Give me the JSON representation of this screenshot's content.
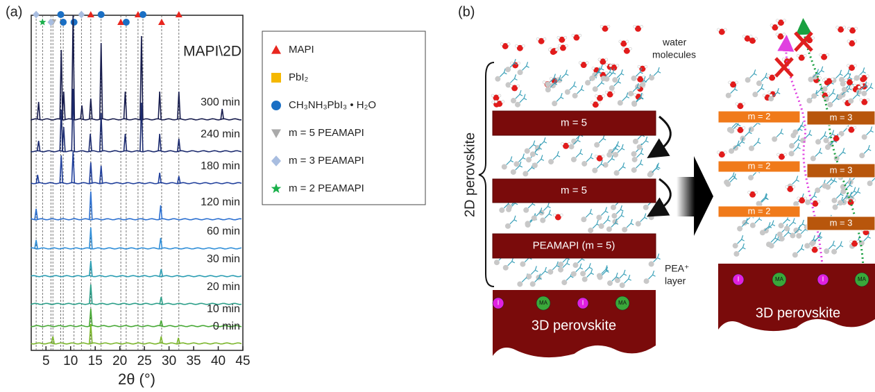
{
  "chart_data": {
    "type": "line",
    "panel_label": "(a)",
    "annotation": "MAPI\\2D",
    "xlabel": "2θ (°)",
    "xlim": [
      2,
      45
    ],
    "xticks": [
      5,
      10,
      15,
      20,
      25,
      30,
      35,
      40,
      45
    ],
    "series": [
      {
        "name": "300 min",
        "color": "#161b4c",
        "x": [
          3.5,
          8.1,
          8.6,
          10.5,
          12.3,
          14.1,
          16.2,
          21.1,
          24.4,
          28.1,
          32,
          40.8
        ],
        "values": [
          25,
          100,
          40,
          150,
          20,
          30,
          110,
          40,
          120,
          40,
          40,
          15
        ]
      },
      {
        "name": "240 min",
        "color": "#1b2a6e",
        "x": [
          3.5,
          8.1,
          8.6,
          10.5,
          14,
          16.2,
          21.1,
          24.4,
          28.1,
          32
        ],
        "values": [
          15,
          60,
          35,
          90,
          25,
          55,
          25,
          70,
          25,
          18
        ]
      },
      {
        "name": "180 min",
        "color": "#21409c",
        "x": [
          3.3,
          8.1,
          10.5,
          14.1,
          16.2,
          28.1,
          32
        ],
        "values": [
          12,
          40,
          45,
          30,
          25,
          15,
          10
        ]
      },
      {
        "name": "120 min",
        "color": "#2b6fd0",
        "x": [
          3,
          14.1,
          28.3
        ],
        "values": [
          15,
          40,
          20
        ]
      },
      {
        "name": "60 min",
        "color": "#2f8ed8",
        "x": [
          3,
          14.1,
          28.3
        ],
        "values": [
          12,
          30,
          15
        ]
      },
      {
        "name": "30 min",
        "color": "#2a9db2",
        "x": [
          14.1,
          28.4
        ],
        "values": [
          22,
          10
        ]
      },
      {
        "name": "20 min",
        "color": "#2a9e88",
        "x": [
          14.1,
          28.4
        ],
        "values": [
          28,
          10
        ]
      },
      {
        "name": "10 min",
        "color": "#46a834",
        "x": [
          14.1,
          28.4
        ],
        "values": [
          25,
          8
        ]
      },
      {
        "name": "0 min",
        "color": "#7ab52a",
        "x": [
          6.4,
          14.1,
          28.4,
          31.9
        ],
        "values": [
          10,
          28,
          10,
          8
        ]
      }
    ],
    "reference_markers": [
      {
        "name": "MAPI",
        "color": "#e8261e",
        "shape": "triangle",
        "x": [
          14.1,
          20.2,
          23.7,
          28.5,
          32
        ]
      },
      {
        "name": "PbI₂",
        "color": "#f5b800",
        "shape": "square",
        "x": []
      },
      {
        "name": "CH₃NH₃PbI₃ • H₂O",
        "color": "#1a6fc4",
        "shape": "circle",
        "x": [
          8.5,
          8,
          10.7,
          16.2,
          21.3,
          24.7
        ]
      },
      {
        "name": "m = 5 PEAMAPI",
        "color": "#aaaaaa",
        "shape": "down-triangle",
        "x": [
          6.4
        ]
      },
      {
        "name": "m = 3 PEAMAPI",
        "color": "#a8bde0",
        "shape": "diamond",
        "x": [
          3,
          6,
          12.2
        ]
      },
      {
        "name": "m = 2 PEAMAPI",
        "color": "#19b04a",
        "shape": "star",
        "x": [
          4.3
        ]
      }
    ]
  },
  "diagram": {
    "panel_label": "(b)",
    "left": {
      "water_label": [
        "water",
        "molecules"
      ],
      "side_label": "2D perovskite",
      "layers": [
        "m = 5",
        "m = 5",
        "PEAMAPI (m = 5)"
      ],
      "pea_label": [
        "PEA⁺",
        "layer"
      ],
      "ions": [
        "I",
        "MA",
        "I",
        "MA"
      ],
      "base_label": "3D perovskite"
    },
    "right": {
      "layers": [
        "m = 2",
        "m = 3",
        "m = 2",
        "m = 3",
        "m = 2",
        "m = 3"
      ],
      "ions": [
        "I",
        "MA",
        "I",
        "MA"
      ],
      "base_label": "3D perovskite"
    }
  }
}
